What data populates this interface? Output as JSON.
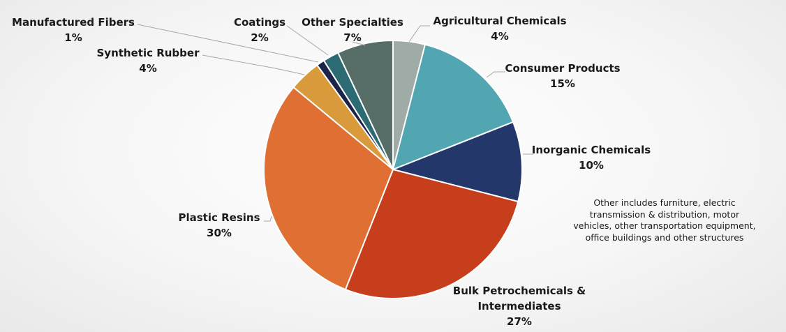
{
  "chart_data": {
    "type": "pie",
    "title": "",
    "start": "top",
    "direction": "clockwise",
    "slices": [
      {
        "name": "Agricultural Chemicals",
        "value": 4,
        "label": "4%",
        "color": "#9eaba6"
      },
      {
        "name": "Consumer Products",
        "value": 15,
        "label": "15%",
        "color": "#52a6b2"
      },
      {
        "name": "Inorganic Chemicals",
        "value": 10,
        "label": "10%",
        "color": "#24376b"
      },
      {
        "name": "Bulk Petrochemicals & Intermediates",
        "name_lines": [
          "Bulk Petrochemicals &",
          "Intermediates"
        ],
        "value": 27,
        "label": "27%",
        "color": "#c63e1c"
      },
      {
        "name": "Plastic Resins",
        "value": 30,
        "label": "30%",
        "color": "#e06f33"
      },
      {
        "name": "Synthetic Rubber",
        "value": 4,
        "label": "4%",
        "color": "#d99a3c"
      },
      {
        "name": "Manufactured Fibers",
        "value": 1,
        "label": "1%",
        "color": "#1a2348"
      },
      {
        "name": "Coatings",
        "value": 2,
        "label": "2%",
        "color": "#2c6b73"
      },
      {
        "name": "Other Specialties",
        "value": 7,
        "label": "7%",
        "color": "#566e67"
      }
    ],
    "note": "Other includes furniture, electric transmission & distribution, motor vehicles, other transportation equipment, office buildings and other structures"
  }
}
